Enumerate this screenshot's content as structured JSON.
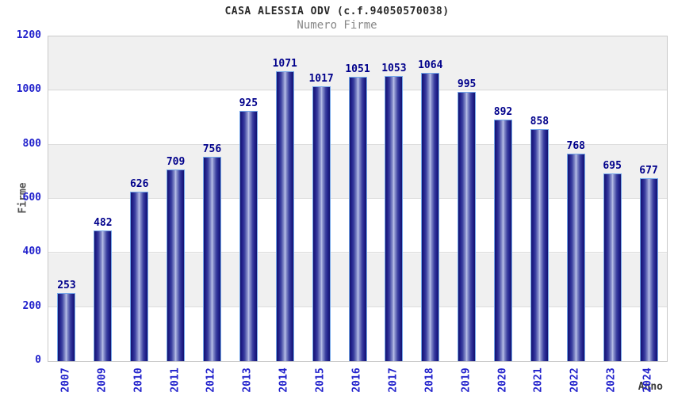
{
  "chart_data": {
    "type": "bar",
    "title": "CASA ALESSIA ODV (c.f.94050570038)",
    "subtitle": "Numero Firme",
    "xlabel": "Anno",
    "ylabel": "Firme",
    "categories": [
      "2007",
      "2009",
      "2010",
      "2011",
      "2012",
      "2013",
      "2014",
      "2015",
      "2016",
      "2017",
      "2018",
      "2019",
      "2020",
      "2021",
      "2022",
      "2023",
      "2024"
    ],
    "values": [
      253,
      482,
      626,
      709,
      756,
      925,
      1071,
      1017,
      1051,
      1053,
      1064,
      995,
      892,
      858,
      768,
      695,
      677
    ],
    "ylim": [
      0,
      1200
    ],
    "yticks": [
      0,
      200,
      400,
      600,
      800,
      1000,
      1200
    ],
    "legend": "none",
    "grid": "horizontal-alternating-bands",
    "colors": {
      "tick_label": "#2222cc",
      "value_label": "#00008b",
      "bar_border": "#74a7ea",
      "bar_dark": "#13136e",
      "bar_light": "#bdc4ea",
      "band_gray": "#f0f0f0",
      "plot_border": "#c9c9c9",
      "gridline": "#dcdcdc",
      "title_color": "#2a2a2a",
      "subtitle_color": "#878787",
      "axis_title_color": "#555555"
    }
  }
}
